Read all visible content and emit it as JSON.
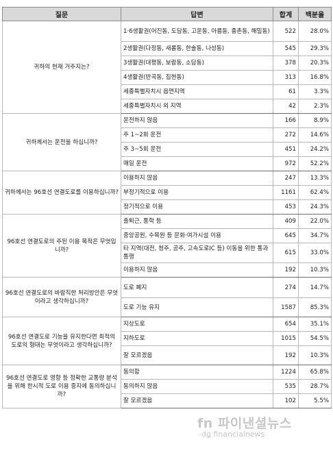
{
  "table": {
    "headers": [
      "질문",
      "답변",
      "합계",
      "백분율"
    ],
    "groups": [
      {
        "question": "귀하의 현재 거주지는?",
        "rows": [
          {
            "answer": "1·6생활권(어진동, 도담동, 고운동, 아름동, 종촌동, 해밀동)",
            "total": "522",
            "percent": "28.0%"
          },
          {
            "answer": "2생활권(다정동, 새롬동, 한솔동, 나성동)",
            "total": "545",
            "percent": "29.3%"
          },
          {
            "answer": "3생활권(대평동, 보람동, 소담동)",
            "total": "378",
            "percent": "20.3%"
          },
          {
            "answer": "4생활권(반곡동, 집현동)",
            "total": "313",
            "percent": "16.8%"
          },
          {
            "answer": "세종특별자치시 읍면지역",
            "total": "61",
            "percent": "3.3%"
          },
          {
            "answer": "세종특별자치시 외 지역",
            "total": "42",
            "percent": "2.3%"
          }
        ]
      },
      {
        "question": "귀하께서는 운전을 하십니까?",
        "rows": [
          {
            "answer": "운전하지 않음",
            "total": "166",
            "percent": "8.9%"
          },
          {
            "answer": "주 1~2회 운전",
            "total": "272",
            "percent": "14.6%"
          },
          {
            "answer": "주 3~5회 운전",
            "total": "451",
            "percent": "24.2%"
          },
          {
            "answer": "매일 운전",
            "total": "972",
            "percent": "52.2%"
          }
        ]
      },
      {
        "question": "귀하께서는 96호선 연결도로를 이용하십니까?",
        "rows": [
          {
            "answer": "이용하지 않음",
            "total": "247",
            "percent": "13.3%"
          },
          {
            "answer": "부정기적으로 이용",
            "total": "1161",
            "percent": "62.4%"
          },
          {
            "answer": "정기적으로 이용",
            "total": "453",
            "percent": "24.3%"
          }
        ]
      },
      {
        "question": "96호선 연결도로의 주된 이용 목적은 무엇입니까?",
        "rows": [
          {
            "answer": "출퇴근, 통학 등",
            "total": "409",
            "percent": "22.0%"
          },
          {
            "answer": "중앙공원, 수목원 등 문화·여가시설 이용",
            "total": "645",
            "percent": "34.7%"
          },
          {
            "answer": "타 지역(대전, 청주, 공주, 고속도로IC 등) 이동을 위한 통과통행",
            "total": "615",
            "percent": "33.0%"
          },
          {
            "answer": "이용하지 않음",
            "total": "192",
            "percent": "10.3%"
          }
        ]
      },
      {
        "question": "96호선 연결도로의 바람직한 처리방안은 무엇이라고 생각하십니까?",
        "rows": [
          {
            "answer": "도로 폐지",
            "total": "274",
            "percent": "14.7%"
          },
          {
            "answer": "도로 기능 유지",
            "total": "1587",
            "percent": "85.3%"
          }
        ]
      },
      {
        "question": "96호선 연결도로 기능을 유지한다면 최적의 도로의 형태는 무엇이라고 생각하십니까?",
        "rows": [
          {
            "answer": "지상도로",
            "total": "654",
            "percent": "35.1%"
          },
          {
            "answer": "지하도로",
            "total": "1015",
            "percent": "54.5%"
          },
          {
            "answer": "잘 모르겠음",
            "total": "192",
            "percent": "10.3%"
          }
        ]
      },
      {
        "question": "96호선 연결도로 영향 등 정확한 교통량 분석을 위해 한시적 도로 이용 중지에 동의하십니까?",
        "rows": [
          {
            "answer": "동의함",
            "total": "1224",
            "percent": "65.8%"
          },
          {
            "answer": "동의하지 않음",
            "total": "535",
            "percent": "28.7%"
          },
          {
            "answer": "잘 모르겠음",
            "total": "102",
            "percent": "5.5%"
          }
        ]
      }
    ]
  },
  "watermark": {
    "brand": "fn 파이낸셜뉴스",
    "domain": "-dg financialnews"
  }
}
